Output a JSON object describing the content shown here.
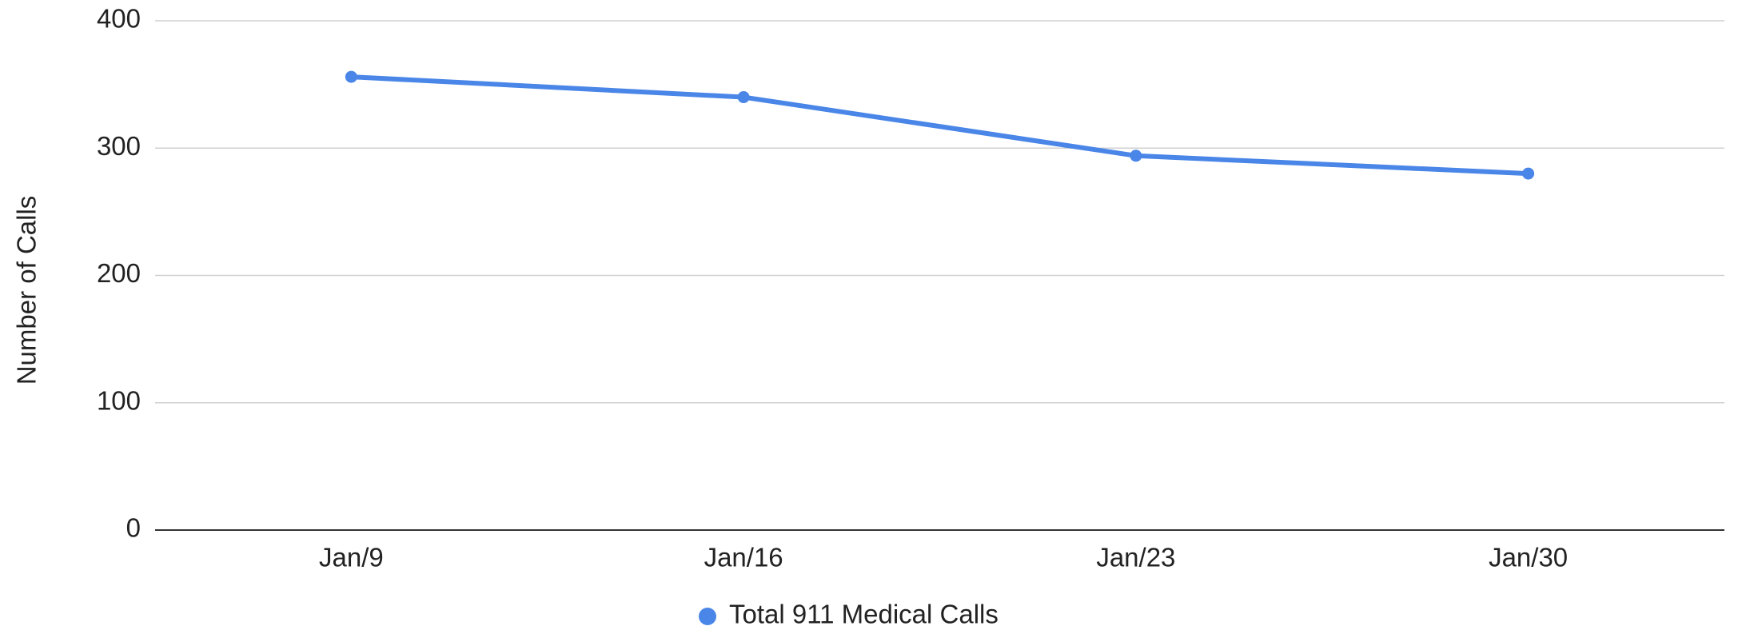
{
  "chart_data": {
    "type": "line",
    "y_axis_label": "Number of Calls",
    "categories": [
      "Jan/9",
      "Jan/16",
      "Jan/23",
      "Jan/30"
    ],
    "series": [
      {
        "name": "Total 911 Medical Calls",
        "color": "#4a86e8",
        "values": [
          356,
          340,
          294,
          280
        ]
      }
    ],
    "ylim": [
      0,
      400
    ],
    "yticks": [
      0,
      100,
      200,
      300,
      400
    ],
    "grid": true,
    "legend": "bottom"
  }
}
